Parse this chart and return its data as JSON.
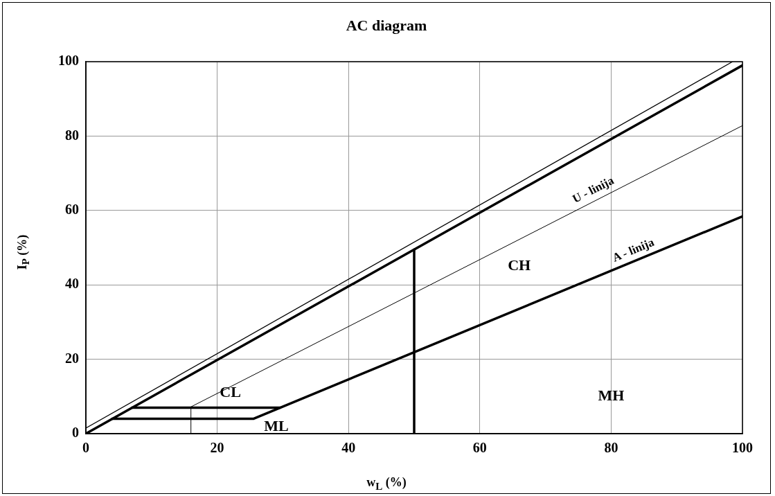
{
  "chart_data": {
    "type": "line",
    "title": "AC diagram",
    "xlabel": "w$_{L}$ (%)",
    "ylabel": "I$_{P}$ (%)",
    "xlim": [
      0,
      100
    ],
    "ylim": [
      0,
      100
    ],
    "xticks": [
      0,
      20,
      40,
      60,
      80,
      100
    ],
    "yticks": [
      0,
      20,
      40,
      60,
      80,
      100
    ],
    "grid": true,
    "legend": false,
    "marker": "none",
    "line_style": "solid",
    "series": [
      {
        "color": "#000000",
        "x": [
          0,
          98.5
        ],
        "values": [
          1.5,
          100
        ]
      },
      {
        "color": "#000000",
        "x": [
          0,
          100
        ],
        "values": [
          0,
          99
        ]
      },
      {
        "color": "#000000",
        "x": [
          16,
          100
        ],
        "values": [
          7.2,
          82.8
        ]
      },
      {
        "color": "#000000",
        "x": [
          4,
          25.5,
          100
        ],
        "values": [
          4,
          4,
          58.4
        ]
      },
      {
        "color": "#000000",
        "x": [
          50,
          50
        ],
        "values": [
          0,
          49.5
        ]
      },
      {
        "color": "#000000",
        "x": [
          7,
          29.6
        ],
        "values": [
          7,
          7
        ]
      },
      {
        "color": "#000000",
        "x": [
          16,
          16
        ],
        "values": [
          0,
          7.2
        ]
      }
    ],
    "annotations": [
      "CL",
      "ML",
      "CH",
      "MH",
      {
        "text": "U - linija",
        "x": 78,
        "y": 63
      },
      {
        "text": "A - linija",
        "x": 84,
        "y": 46.7
      }
    ]
  }
}
